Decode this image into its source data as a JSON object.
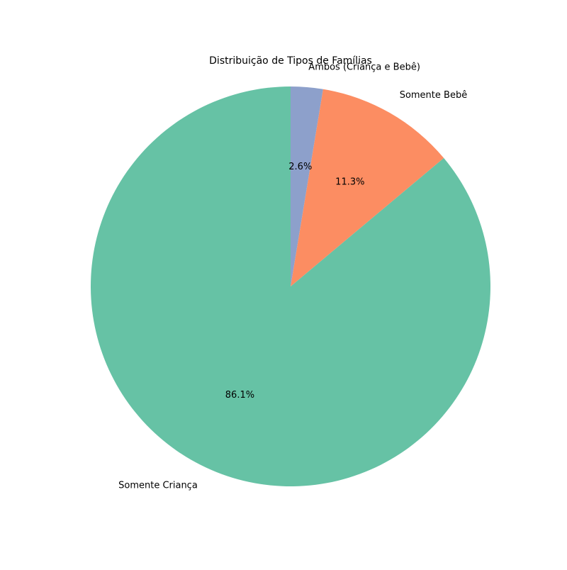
{
  "chart_data": {
    "type": "pie",
    "title": "Distribuição de Tipos de Famílias",
    "start_angle_deg": 90,
    "direction": "counterclockwise",
    "slices": [
      {
        "label": "Somente Criança",
        "value": 86.1,
        "pct_label": "86.1%",
        "color": "#66c2a5"
      },
      {
        "label": "Somente Bebê",
        "value": 11.3,
        "pct_label": "11.3%",
        "color": "#fc8d62"
      },
      {
        "label": "Ambos (Criança e Bebê)",
        "value": 2.6,
        "pct_label": "2.6%",
        "color": "#8da0cb"
      }
    ]
  }
}
